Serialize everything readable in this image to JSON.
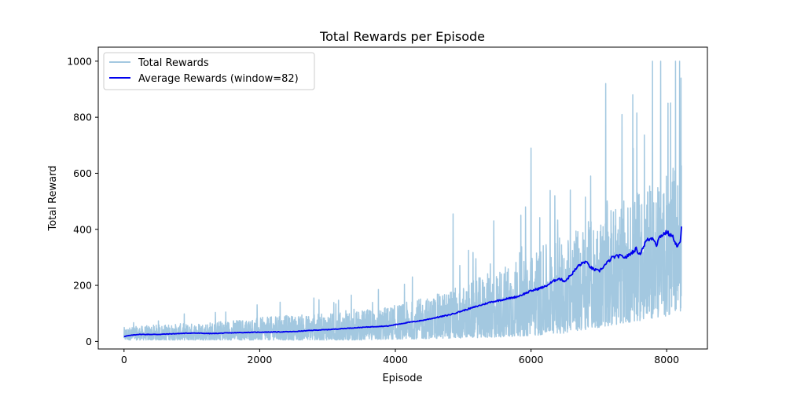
{
  "chart_data": {
    "type": "line",
    "title": "Total Rewards per Episode",
    "xlabel": "Episode",
    "ylabel": "Total Reward",
    "xlim": [
      -380,
      8600
    ],
    "ylim": [
      -27,
      1050
    ],
    "xticks": [
      0,
      2000,
      4000,
      6000,
      8000
    ],
    "yticks": [
      0,
      200,
      400,
      600,
      800,
      1000
    ],
    "grid": false,
    "legend_position": "top-left",
    "series": [
      {
        "name": "Total Rewards",
        "color": "#a3c8e0",
        "style": "raw noisy per-episode total reward",
        "episodes_max": 8219,
        "envelope": {
          "x": [
            0,
            500,
            1000,
            1500,
            2000,
            2500,
            3000,
            3500,
            4000,
            4500,
            5000,
            5500,
            6000,
            6500,
            7000,
            7500,
            8000,
            8219
          ],
          "low": [
            5,
            5,
            5,
            5,
            5,
            5,
            5,
            5,
            8,
            10,
            12,
            15,
            20,
            30,
            50,
            70,
            90,
            110
          ],
          "typical_high": [
            50,
            60,
            65,
            75,
            85,
            95,
            100,
            110,
            130,
            160,
            200,
            260,
            320,
            380,
            450,
            520,
            600,
            650
          ]
        },
        "peaks": [
          {
            "x": 1500,
            "y": 105
          },
          {
            "x": 2300,
            "y": 140
          },
          {
            "x": 2800,
            "y": 155
          },
          {
            "x": 3350,
            "y": 165
          },
          {
            "x": 3750,
            "y": 185
          },
          {
            "x": 4250,
            "y": 230
          },
          {
            "x": 4850,
            "y": 455
          },
          {
            "x": 5080,
            "y": 325
          },
          {
            "x": 5450,
            "y": 430
          },
          {
            "x": 5850,
            "y": 450
          },
          {
            "x": 5920,
            "y": 480
          },
          {
            "x": 6000,
            "y": 690
          },
          {
            "x": 6350,
            "y": 520
          },
          {
            "x": 6580,
            "y": 540
          },
          {
            "x": 6800,
            "y": 515
          },
          {
            "x": 6880,
            "y": 590
          },
          {
            "x": 7100,
            "y": 920
          },
          {
            "x": 7340,
            "y": 810
          },
          {
            "x": 7500,
            "y": 880
          },
          {
            "x": 7560,
            "y": 815
          },
          {
            "x": 7790,
            "y": 1000
          },
          {
            "x": 7910,
            "y": 1000
          },
          {
            "x": 8020,
            "y": 850
          },
          {
            "x": 8130,
            "y": 1000
          },
          {
            "x": 8190,
            "y": 1000
          },
          {
            "x": 8210,
            "y": 940
          }
        ]
      },
      {
        "name": "Average Rewards (window=82)",
        "color": "#0000ee",
        "x": [
          0,
          200,
          500,
          800,
          1000,
          1300,
          1500,
          1800,
          2000,
          2300,
          2500,
          2800,
          3000,
          3300,
          3500,
          3700,
          3900,
          4000,
          4200,
          4400,
          4600,
          4800,
          5000,
          5200,
          5400,
          5600,
          5800,
          6000,
          6200,
          6300,
          6400,
          6500,
          6600,
          6700,
          6800,
          6900,
          7000,
          7100,
          7200,
          7300,
          7400,
          7500,
          7550,
          7600,
          7700,
          7800,
          7850,
          7900,
          8000,
          8100,
          8150,
          8200,
          8219
        ],
        "y": [
          18,
          25,
          25,
          28,
          30,
          28,
          30,
          32,
          33,
          34,
          35,
          40,
          42,
          47,
          50,
          53,
          55,
          60,
          68,
          75,
          85,
          95,
          110,
          125,
          140,
          150,
          160,
          180,
          195,
          210,
          225,
          215,
          240,
          270,
          285,
          260,
          250,
          275,
          300,
          305,
          300,
          320,
          330,
          310,
          360,
          370,
          345,
          375,
          390,
          370,
          340,
          350,
          410
        ]
      }
    ]
  }
}
